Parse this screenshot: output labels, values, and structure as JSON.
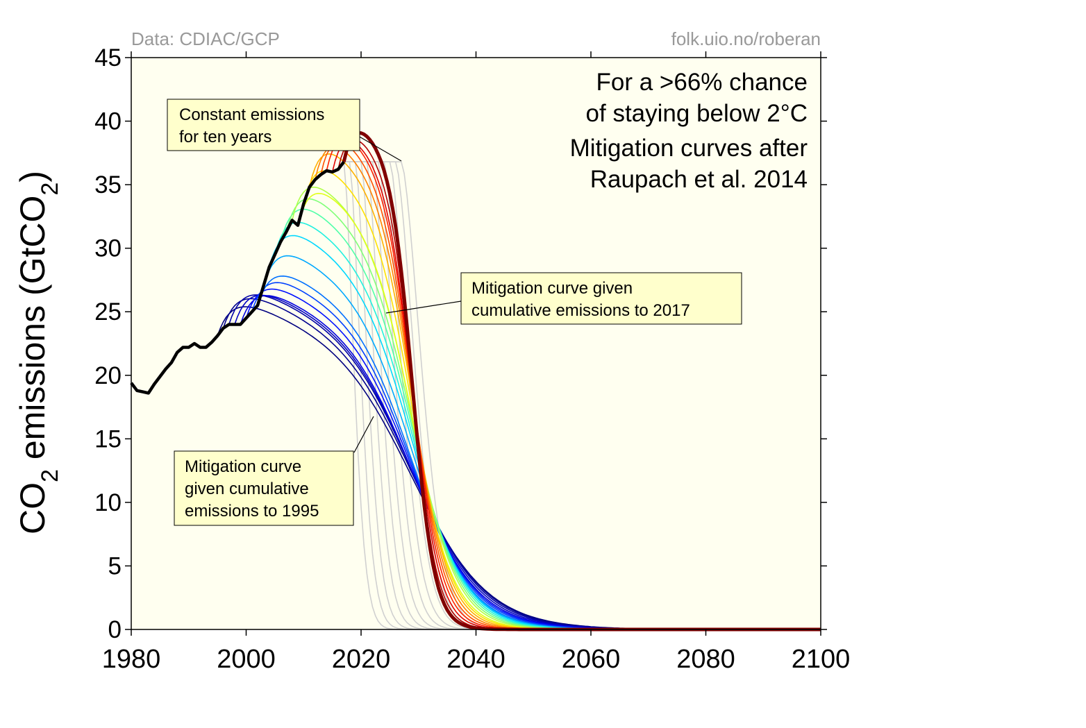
{
  "chart_data": {
    "type": "line",
    "ylabel_prefix": "CO",
    "ylabel_sub": "2",
    "ylabel_mid": " emissions (GtCO",
    "ylabel_sub2": "2",
    "ylabel_suffix": ")",
    "xlim": [
      1980,
      2100
    ],
    "ylim": [
      0,
      45
    ],
    "xticks": [
      "1980",
      "2000",
      "2020",
      "2040",
      "2060",
      "2080",
      "2100"
    ],
    "yticks": [
      "0",
      "5",
      "10",
      "15",
      "20",
      "25",
      "30",
      "35",
      "40",
      "45"
    ],
    "grid": false,
    "background": "#fffff0",
    "source_left": "Data: CDIAC/GCP",
    "source_right": "folk.uio.no/roberan",
    "title_lines": [
      "For a >66% chance",
      "of staying below 2°C",
      "Mitigation curves after",
      "Raupach et al. 2014"
    ],
    "annotations": [
      {
        "lines": [
          "Constant emissions",
          "for ten years"
        ]
      },
      {
        "lines": [
          "Mitigation curve given",
          "cumulative emissions to 2017"
        ]
      },
      {
        "lines": [
          "Mitigation curve",
          "given cumulative",
          "emissions to 1995"
        ]
      }
    ],
    "historical": {
      "x": [
        1980,
        1981,
        1982,
        1983,
        1984,
        1985,
        1986,
        1987,
        1988,
        1989,
        1990,
        1991,
        1992,
        1993,
        1994,
        1995,
        1996,
        1997,
        1998,
        1999,
        2000,
        2001,
        2002,
        2003,
        2004,
        2005,
        2006,
        2007,
        2008,
        2009,
        2010,
        2011,
        2012,
        2013,
        2014,
        2015,
        2016,
        2017
      ],
      "values": [
        19.4,
        18.8,
        18.7,
        18.6,
        19.3,
        19.9,
        20.5,
        21.0,
        21.8,
        22.2,
        22.2,
        22.5,
        22.2,
        22.2,
        22.6,
        23.1,
        23.7,
        24.0,
        24.0,
        24.0,
        24.5,
        25.0,
        25.5,
        27.0,
        28.5,
        29.5,
        30.5,
        31.3,
        32.2,
        31.8,
        33.5,
        34.8,
        35.4,
        35.8,
        36.1,
        36.0,
        36.2,
        36.8
      ],
      "color": "#000000"
    },
    "mitigation_curves": {
      "start_years": [
        1995,
        1996,
        1997,
        1998,
        1999,
        2000,
        2001,
        2002,
        2003,
        2004,
        2005,
        2006,
        2007,
        2008,
        2009,
        2010,
        2011,
        2012,
        2013,
        2014,
        2015,
        2016,
        2017
      ],
      "colors": [
        "#000080",
        "#00008f",
        "#0000a8",
        "#0000c4",
        "#0000e0",
        "#0010ff",
        "#0040ff",
        "#0070ff",
        "#00a8ff",
        "#00d8ff",
        "#20f0e0",
        "#50ffa8",
        "#80ff78",
        "#b0ff48",
        "#e0ff18",
        "#ffe000",
        "#ffb000",
        "#ff8000",
        "#ff5000",
        "#ff2000",
        "#e00000",
        "#b00000",
        "#800000"
      ],
      "budget_note": "all curves pass near 16 GtCO2 in 2029"
    },
    "constant_curves": {
      "plateau_value": 36.8,
      "plateau_until": 2027,
      "color": "#d0d0d0"
    }
  }
}
